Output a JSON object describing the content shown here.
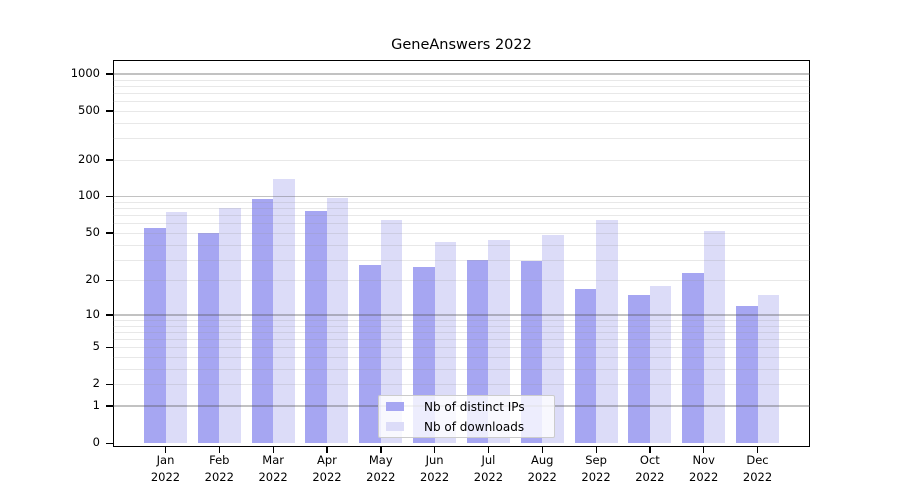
{
  "title": "GeneAnswers 2022",
  "chart_data": {
    "type": "bar",
    "title": "GeneAnswers 2022",
    "scale": "log10(1+x)",
    "grid": true,
    "legend_position": "bottom-center",
    "categories": [
      "Jan 2022",
      "Feb 2022",
      "Mar 2022",
      "Apr 2022",
      "May 2022",
      "Jun 2022",
      "Jul 2022",
      "Aug 2022",
      "Sep 2022",
      "Oct 2022",
      "Nov 2022",
      "Dec 2022"
    ],
    "series": [
      {
        "name": "Nb of distinct IPs",
        "color": "#a6a6f2",
        "values": [
          55,
          50,
          95,
          76,
          27,
          26,
          30,
          29,
          17,
          15,
          23,
          12
        ]
      },
      {
        "name": "Nb of downloads",
        "color": "#dcdcf8",
        "values": [
          75,
          80,
          140,
          97,
          64,
          42,
          44,
          48,
          64,
          18,
          52,
          15
        ]
      }
    ],
    "yticks": [
      0,
      1,
      2,
      5,
      10,
      20,
      50,
      100,
      200,
      500,
      1000
    ],
    "ylim": [
      0,
      1300
    ],
    "xlabel": "",
    "ylabel": "",
    "colors": {
      "axis": "#000000",
      "grid_major": "rgba(80,80,80,0.35)",
      "grid_minor": "rgba(150,150,150,0.22)",
      "legend_border": "#cccccc"
    }
  }
}
